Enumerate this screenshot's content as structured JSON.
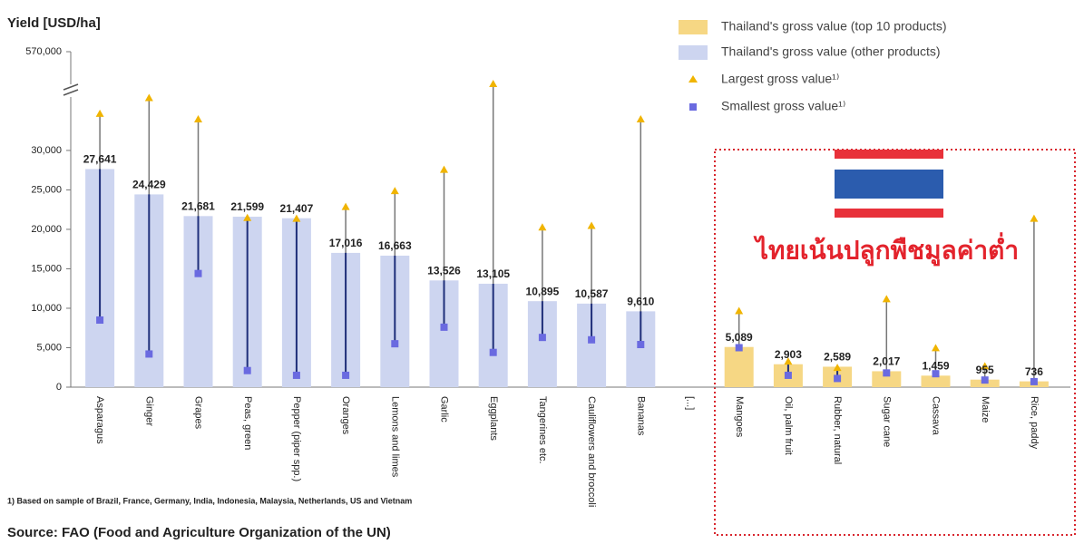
{
  "chart_data": {
    "type": "bar",
    "title": "Yield [USD/ha]",
    "annotation": "ไทยเน้นปลูกพืชมูลค่าต่ำ",
    "footnote": "1) Based on sample of Brazil, France, Germany, India, Indonesia, Malaysia, Netherlands, US and Vietnam",
    "source": "Source: FAO (Food and Agriculture Organization of the UN)",
    "categories": [
      "Asparagus",
      "Ginger",
      "Grapes",
      "Peas, green",
      "Pepper (piper spp.)",
      "Oranges",
      "Lemons and limes",
      "Garlic",
      "Eggplants",
      "Tangerines etc.",
      "Cauliflowers and broccoli",
      "Bananas",
      "[...]",
      "Mangoes",
      "Oil, palm fruit",
      "Rubber, natural",
      "Sugar cane",
      "Cassava",
      "Maize",
      "Rice, paddy"
    ],
    "series": [
      {
        "name": "Thailand's gross value (top 10 products)",
        "color": "#f6d784",
        "marker": "bar",
        "values": [
          null,
          null,
          null,
          null,
          null,
          null,
          null,
          null,
          null,
          null,
          null,
          null,
          null,
          5089,
          2903,
          2589,
          2017,
          1459,
          955,
          736
        ],
        "value_labels": [
          null,
          null,
          null,
          null,
          null,
          null,
          null,
          null,
          null,
          null,
          null,
          null,
          null,
          "5,089",
          "2,903",
          "2,589",
          "2,017",
          "1,459",
          "955",
          "736"
        ]
      },
      {
        "name": "Thailand's gross value (other products)",
        "color": "#cdd5f0",
        "marker": "bar",
        "values": [
          27641,
          24429,
          21681,
          21599,
          21407,
          17016,
          16663,
          13526,
          13105,
          10895,
          10587,
          9610,
          null,
          null,
          null,
          null,
          null,
          null,
          null,
          null
        ],
        "value_labels": [
          "27,641",
          "24,429",
          "21,681",
          "21,599",
          "21,407",
          "17,016",
          "16,663",
          "13,526",
          "13,105",
          "10,895",
          "10,587",
          "9,610",
          null,
          null,
          null,
          null,
          null,
          null,
          null,
          null
        ]
      },
      {
        "name": "Largest gross value¹⁾",
        "color": "#f0b400",
        "marker": "triangle",
        "values": [
          34600,
          36600,
          33900,
          21400,
          21300,
          22800,
          24800,
          27500,
          170000,
          20200,
          20400,
          33900,
          null,
          9600,
          3200,
          2400,
          11100,
          4900,
          2600,
          21300
        ]
      },
      {
        "name": "Smallest gross value¹⁾",
        "color": "#6a6ae0",
        "marker": "square",
        "values": [
          8500,
          4200,
          14400,
          2100,
          1500,
          1500,
          5500,
          7600,
          4400,
          6300,
          6000,
          5400,
          null,
          5000,
          1500,
          1100,
          1800,
          1700,
          900,
          700
        ]
      }
    ],
    "ylim": [
      0,
      570000
    ],
    "y_break": 37000,
    "yticks": [
      0,
      {
        "value": 5000,
        "label": "5,000"
      },
      {
        "value": 10000,
        "label": "10,000"
      },
      {
        "value": 15000,
        "label": "15,000"
      },
      {
        "value": 20000,
        "label": "20,000"
      },
      {
        "value": 25000,
        "label": "25,000"
      },
      {
        "value": 30000,
        "label": "30,000"
      },
      {
        "value": 570000,
        "label": "570,000"
      }
    ]
  }
}
